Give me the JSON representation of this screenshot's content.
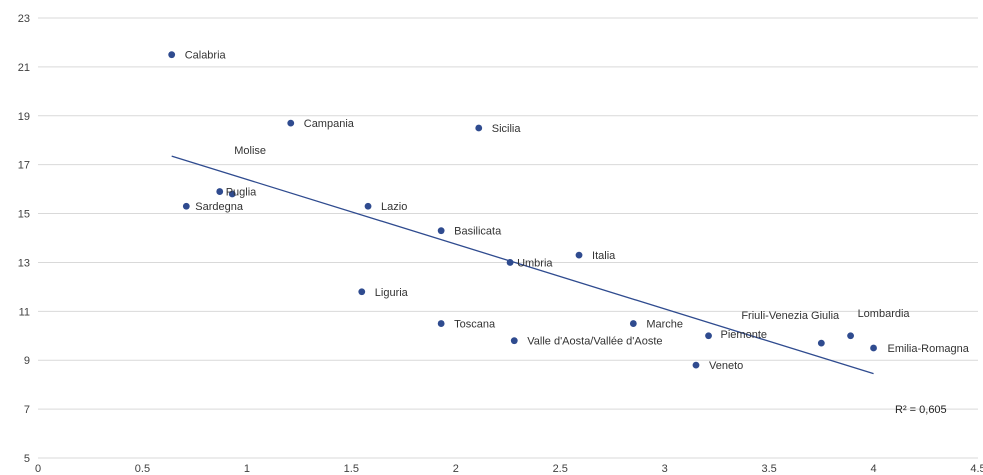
{
  "chart_data": {
    "type": "scatter",
    "title": "",
    "xlabel": "",
    "ylabel": "",
    "xlim": [
      0,
      4.5
    ],
    "ylim": [
      5,
      23
    ],
    "x_ticks": [
      0,
      0.5,
      1,
      1.5,
      2,
      2.5,
      3,
      3.5,
      4,
      4.5
    ],
    "y_ticks": [
      5,
      7,
      9,
      11,
      13,
      15,
      17,
      19,
      21,
      23
    ],
    "grid": "horizontal",
    "marker_color": "#2f4b8f",
    "trendline_color": "#2f4b8f",
    "points": [
      {
        "name": "Calabria",
        "x": 0.64,
        "y": 21.5
      },
      {
        "name": "Campania",
        "x": 1.21,
        "y": 18.7
      },
      {
        "name": "Sicilia",
        "x": 2.11,
        "y": 18.5
      },
      {
        "name": "Molise",
        "x": 0.93,
        "y": 15.8
      },
      {
        "name": "Puglia",
        "x": 0.87,
        "y": 15.9
      },
      {
        "name": "Sardegna",
        "x": 0.71,
        "y": 15.3
      },
      {
        "name": "Lazio",
        "x": 1.58,
        "y": 15.3
      },
      {
        "name": "Basilicata",
        "x": 1.93,
        "y": 14.3
      },
      {
        "name": "Italia",
        "x": 2.59,
        "y": 13.3
      },
      {
        "name": "Umbria",
        "x": 2.26,
        "y": 13.0
      },
      {
        "name": "Liguria",
        "x": 1.55,
        "y": 11.8
      },
      {
        "name": "Toscana",
        "x": 1.93,
        "y": 10.5
      },
      {
        "name": "Valle d'Aosta/Vallée d'Aoste",
        "x": 2.28,
        "y": 9.8
      },
      {
        "name": "Marche",
        "x": 2.85,
        "y": 10.5
      },
      {
        "name": "Piemonte",
        "x": 3.21,
        "y": 10.0
      },
      {
        "name": "Veneto",
        "x": 3.15,
        "y": 8.8
      },
      {
        "name": "Friuli-Venezia Giulia",
        "x": 3.75,
        "y": 9.7
      },
      {
        "name": "Lombardia",
        "x": 3.89,
        "y": 10.0
      },
      {
        "name": "Emilia-Romagna",
        "x": 4.0,
        "y": 9.5
      }
    ],
    "trendline": {
      "x": [
        0.64,
        4.0
      ],
      "y": [
        17.35,
        8.45
      ]
    },
    "r_squared_label": "R² = 0,605"
  }
}
